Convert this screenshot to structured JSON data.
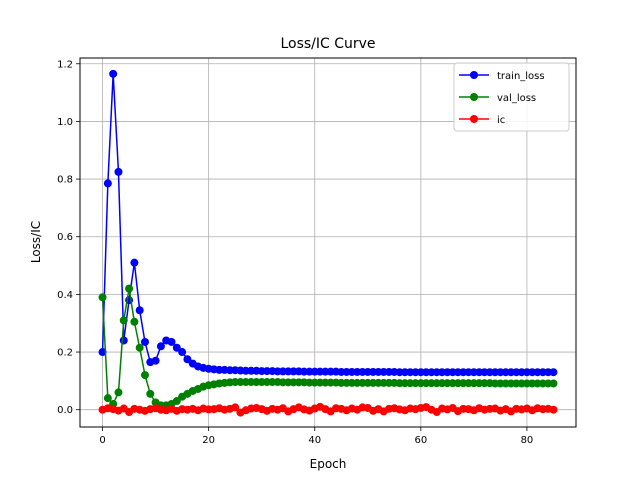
{
  "chart_data": {
    "type": "line",
    "title": "Loss/IC Curve",
    "xlabel": "Epoch",
    "ylabel": "Loss/IC",
    "xlim": [
      -4.25,
      89.25
    ],
    "ylim": [
      -0.06,
      1.22
    ],
    "xticks": [
      0,
      20,
      40,
      60,
      80
    ],
    "yticks": [
      0.0,
      0.2,
      0.4,
      0.6,
      0.8,
      1.0,
      1.2
    ],
    "xtick_labels": [
      "0",
      "20",
      "40",
      "60",
      "80"
    ],
    "ytick_labels": [
      "0.0",
      "0.2",
      "0.4",
      "0.6",
      "0.8",
      "1.0",
      "1.2"
    ],
    "grid": true,
    "legend_position": "top-right",
    "x": [
      0,
      1,
      2,
      3,
      4,
      5,
      6,
      7,
      8,
      9,
      10,
      11,
      12,
      13,
      14,
      15,
      16,
      17,
      18,
      19,
      20,
      21,
      22,
      23,
      24,
      25,
      26,
      27,
      28,
      29,
      30,
      31,
      32,
      33,
      34,
      35,
      36,
      37,
      38,
      39,
      40,
      41,
      42,
      43,
      44,
      45,
      46,
      47,
      48,
      49,
      50,
      51,
      52,
      53,
      54,
      55,
      56,
      57,
      58,
      59,
      60,
      61,
      62,
      63,
      64,
      65,
      66,
      67,
      68,
      69,
      70,
      71,
      72,
      73,
      74,
      75,
      76,
      77,
      78,
      79,
      80,
      81,
      82,
      83,
      84,
      85
    ],
    "series": [
      {
        "name": "train_loss",
        "color": "#0000ff",
        "values": [
          0.2,
          0.785,
          1.165,
          0.825,
          0.24,
          0.38,
          0.51,
          0.345,
          0.235,
          0.165,
          0.17,
          0.22,
          0.24,
          0.235,
          0.215,
          0.2,
          0.175,
          0.16,
          0.15,
          0.145,
          0.142,
          0.14,
          0.138,
          0.138,
          0.137,
          0.137,
          0.136,
          0.135,
          0.135,
          0.135,
          0.134,
          0.134,
          0.134,
          0.133,
          0.133,
          0.133,
          0.133,
          0.133,
          0.132,
          0.132,
          0.132,
          0.132,
          0.132,
          0.132,
          0.132,
          0.131,
          0.131,
          0.131,
          0.131,
          0.131,
          0.131,
          0.131,
          0.131,
          0.131,
          0.131,
          0.131,
          0.13,
          0.13,
          0.13,
          0.13,
          0.13,
          0.13,
          0.13,
          0.13,
          0.13,
          0.13,
          0.13,
          0.13,
          0.13,
          0.13,
          0.13,
          0.13,
          0.13,
          0.13,
          0.13,
          0.13,
          0.13,
          0.13,
          0.13,
          0.13,
          0.13,
          0.13,
          0.13,
          0.13,
          0.13,
          0.13
        ]
      },
      {
        "name": "val_loss",
        "color": "#008000",
        "values": [
          0.39,
          0.04,
          0.02,
          0.06,
          0.31,
          0.42,
          0.305,
          0.215,
          0.12,
          0.055,
          0.025,
          0.015,
          0.015,
          0.02,
          0.03,
          0.045,
          0.055,
          0.065,
          0.072,
          0.08,
          0.085,
          0.088,
          0.091,
          0.093,
          0.095,
          0.096,
          0.096,
          0.096,
          0.096,
          0.096,
          0.096,
          0.096,
          0.096,
          0.096,
          0.095,
          0.095,
          0.095,
          0.095,
          0.095,
          0.094,
          0.094,
          0.094,
          0.094,
          0.094,
          0.094,
          0.093,
          0.093,
          0.093,
          0.093,
          0.093,
          0.093,
          0.093,
          0.093,
          0.093,
          0.093,
          0.093,
          0.092,
          0.092,
          0.092,
          0.092,
          0.092,
          0.092,
          0.092,
          0.092,
          0.092,
          0.092,
          0.092,
          0.092,
          0.092,
          0.092,
          0.092,
          0.092,
          0.092,
          0.092,
          0.091,
          0.091,
          0.091,
          0.091,
          0.091,
          0.091,
          0.091,
          0.091,
          0.091,
          0.091,
          0.091,
          0.091
        ]
      },
      {
        "name": "ic",
        "color": "#ff0000",
        "values": [
          0.0,
          0.005,
          0.002,
          -0.003,
          0.004,
          -0.008,
          0.003,
          0.0,
          -0.004,
          0.002,
          0.005,
          0.0,
          -0.002,
          0.003,
          -0.004,
          0.002,
          0.0,
          0.003,
          -0.002,
          0.004,
          0.001,
          0.002,
          0.005,
          0.0,
          0.003,
          0.008,
          -0.01,
          -0.002,
          0.004,
          0.006,
          0.002,
          -0.004,
          0.003,
          0.0,
          0.005,
          -0.006,
          0.002,
          0.008,
          0.001,
          -0.003,
          0.004,
          0.01,
          0.002,
          -0.006,
          0.005,
          0.003,
          -0.002,
          0.004,
          0.0,
          0.008,
          0.006,
          -0.004,
          0.002,
          -0.006,
          0.003,
          0.005,
          0.001,
          -0.002,
          0.004,
          0.002,
          0.006,
          0.009,
          0.0,
          -0.008,
          0.004,
          0.001,
          0.006,
          -0.005,
          0.003,
          0.002,
          -0.002,
          0.005,
          0.0,
          0.003,
          0.004,
          -0.003,
          0.002,
          -0.006,
          0.003,
          0.001,
          0.004,
          -0.002,
          0.005,
          0.002,
          0.003,
          0.0
        ]
      }
    ]
  }
}
